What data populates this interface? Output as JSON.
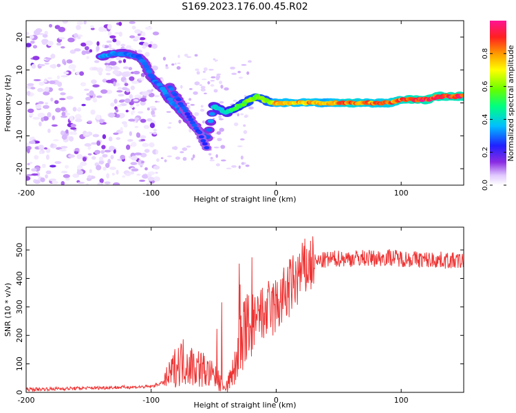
{
  "title": "S169.2023.176.00.45.R02",
  "chart_data": [
    {
      "type": "heatmap",
      "xlabel": "Height of straight line (km)",
      "ylabel": "Frequency (Hz)",
      "xlim": [
        -200,
        150
      ],
      "ylim": [
        -25,
        25
      ],
      "xticks": [
        -200,
        -100,
        0,
        100
      ],
      "yticks": [
        20,
        10,
        0,
        -10,
        -20
      ],
      "colorbar": {
        "label": "Normalized spectral amplitude",
        "range": [
          0,
          1
        ],
        "ticks": [
          0.0,
          0.2,
          0.4,
          0.6,
          0.8
        ]
      },
      "ridge": {
        "x": [
          -140,
          -130,
          -120,
          -110,
          -105,
          -100,
          -95,
          -90,
          -85,
          -80,
          -75,
          -70,
          -65,
          -60,
          -55,
          -50,
          -45,
          -40,
          -35,
          -30,
          -25,
          -20,
          -15,
          -10,
          -5,
          0,
          10,
          20,
          30,
          40,
          50,
          60,
          70,
          80,
          90,
          100,
          110,
          120,
          130,
          140,
          150
        ],
        "freq": [
          14,
          15,
          15,
          14,
          12,
          8,
          6,
          4,
          1,
          -1,
          -3,
          -5,
          -7,
          -9,
          -11,
          -1,
          -2,
          -3,
          -2,
          -1,
          0,
          1,
          2,
          1,
          0,
          0,
          0,
          0,
          0,
          0,
          0,
          0,
          0,
          0,
          0,
          1,
          1,
          1,
          2,
          2,
          2
        ],
        "amplitude": [
          0.35,
          0.35,
          0.32,
          0.3,
          0.3,
          0.3,
          0.32,
          0.32,
          0.32,
          0.32,
          0.3,
          0.3,
          0.3,
          0.3,
          0.28,
          0.4,
          0.45,
          0.4,
          0.5,
          0.55,
          0.6,
          0.62,
          0.62,
          0.62,
          0.62,
          0.8,
          0.8,
          0.8,
          0.85,
          0.75,
          0.85,
          0.9,
          0.85,
          0.85,
          0.85,
          0.9,
          0.95,
          0.95,
          0.95,
          0.95,
          0.95
        ]
      },
      "second_branch": {
        "x": [
          -85,
          -80,
          -75,
          -70,
          -65,
          -60,
          -55
        ],
        "freq": [
          5,
          2,
          -1,
          -4,
          -7,
          -10,
          -14
        ],
        "amplitude": [
          0.3,
          0.3,
          0.28,
          0.28,
          0.28,
          0.26,
          0.25
        ]
      }
    },
    {
      "type": "line",
      "xlabel": "Height of straight line (km)",
      "ylabel": "SNR (10 * v/v)",
      "xlim": [
        -200,
        150
      ],
      "ylim": [
        0,
        580
      ],
      "xticks": [
        -200,
        -100,
        0,
        100
      ],
      "yticks": [
        0,
        100,
        200,
        300,
        400,
        500
      ],
      "color": "#ee3333",
      "series": [
        {
          "x": [
            -200,
            -180,
            -160,
            -140,
            -120,
            -100,
            -90,
            -85,
            -80,
            -75,
            -70,
            -65,
            -60,
            -55,
            -50,
            -45,
            -40,
            -35,
            -30,
            -25,
            -20,
            -15,
            -10,
            -5,
            0,
            5,
            10,
            15,
            20,
            25,
            30,
            40,
            50,
            60,
            70,
            80,
            90,
            100,
            110,
            120,
            130,
            140,
            150
          ],
          "y": [
            10,
            12,
            14,
            16,
            18,
            20,
            35,
            60,
            95,
            110,
            100,
            90,
            85,
            70,
            55,
            35,
            20,
            60,
            150,
            200,
            230,
            250,
            270,
            290,
            300,
            330,
            360,
            390,
            420,
            440,
            455,
            465,
            470,
            470,
            472,
            470,
            475,
            470,
            468,
            465,
            465,
            462,
            460
          ]
        }
      ]
    }
  ]
}
